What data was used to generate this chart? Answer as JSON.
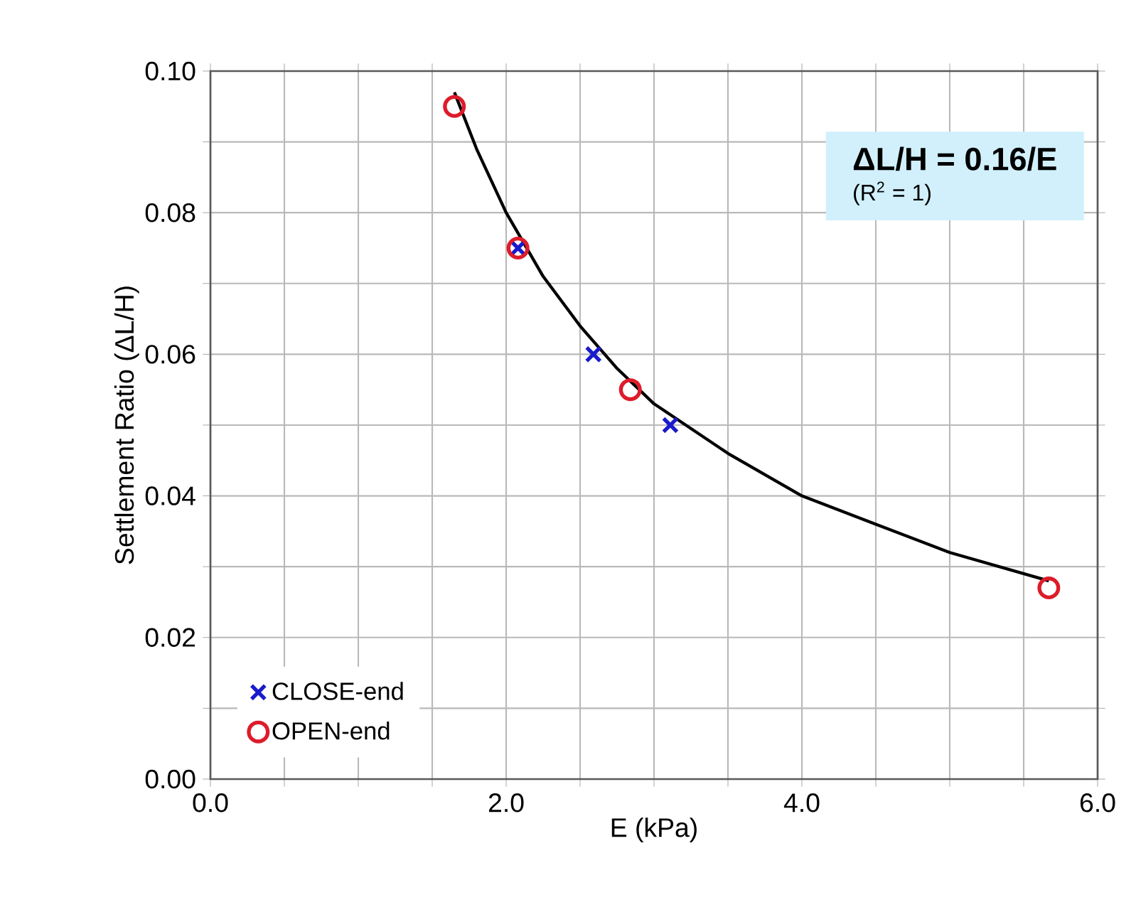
{
  "chart_data": {
    "type": "scatter",
    "xlabel": "E (kPa)",
    "ylabel": "Settlement Ratio (ΔL/H)",
    "xlim": [
      0,
      6
    ],
    "ylim": [
      0,
      0.1
    ],
    "xticks": [
      {
        "value": 0,
        "label": "0.0"
      },
      {
        "value": 0.5,
        "label": null
      },
      {
        "value": 1,
        "label": null
      },
      {
        "value": 1.5,
        "label": null
      },
      {
        "value": 2,
        "label": "2.0"
      },
      {
        "value": 2.5,
        "label": null
      },
      {
        "value": 3,
        "label": null
      },
      {
        "value": 3.5,
        "label": null
      },
      {
        "value": 4,
        "label": "4.0"
      },
      {
        "value": 4.5,
        "label": null
      },
      {
        "value": 5,
        "label": null
      },
      {
        "value": 5.5,
        "label": null
      },
      {
        "value": 6,
        "label": "6.0"
      }
    ],
    "yticks": [
      {
        "value": 0,
        "label": "0.00"
      },
      {
        "value": 0.01,
        "label": null
      },
      {
        "value": 0.02,
        "label": "0.02"
      },
      {
        "value": 0.03,
        "label": null
      },
      {
        "value": 0.04,
        "label": "0.04"
      },
      {
        "value": 0.05,
        "label": null
      },
      {
        "value": 0.06,
        "label": "0.06"
      },
      {
        "value": 0.07,
        "label": null
      },
      {
        "value": 0.08,
        "label": "0.08"
      },
      {
        "value": 0.09,
        "label": null
      },
      {
        "value": 0.1,
        "label": "0.10"
      }
    ],
    "grid": true,
    "legend": "bottom left",
    "series": [
      {
        "type": "line",
        "color": "#000000",
        "marker": "none",
        "x": [
          1.65,
          1.8,
          2.0,
          2.25,
          2.5,
          2.75,
          3.0,
          3.5,
          4.0,
          4.5,
          5.0,
          5.67
        ],
        "values": [
          0.097,
          0.089,
          0.08,
          0.071,
          0.064,
          0.058,
          0.053,
          0.046,
          0.04,
          0.036,
          0.032,
          0.028
        ]
      },
      {
        "name": "CLOSE-end",
        "color": "#1a1acc",
        "marker": "cross",
        "x": [
          2.08,
          2.59,
          3.11
        ],
        "values": [
          0.075,
          0.06,
          0.05
        ]
      },
      {
        "name": "OPEN-end",
        "color": "#dd1c2a",
        "marker": "circle",
        "x": [
          1.65,
          2.08,
          2.84,
          5.67
        ],
        "values": [
          0.095,
          0.075,
          0.055,
          0.027
        ]
      }
    ],
    "annotations": [
      "**ΔL/H = 0.16/E**",
      "(R$^{2}$ = 1)"
    ]
  }
}
